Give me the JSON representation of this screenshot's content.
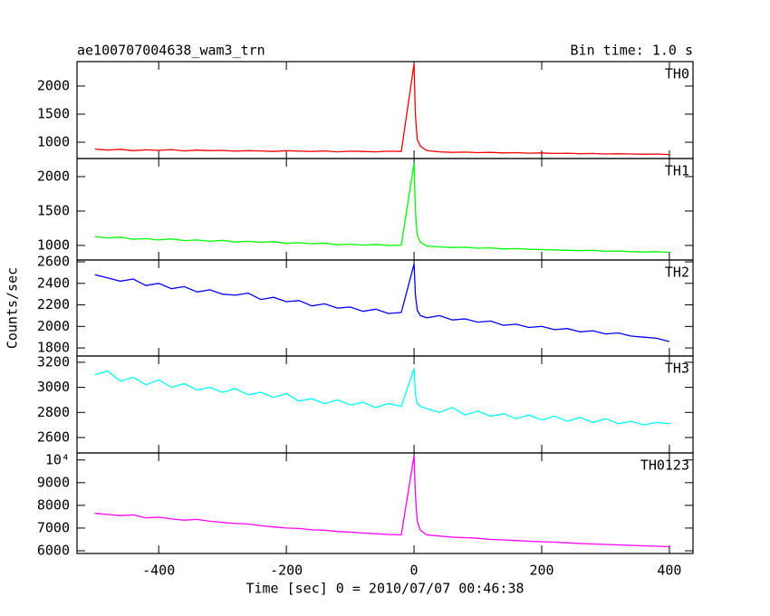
{
  "title": "ae100707004638_wam3_trn",
  "bin_time": "Bin time: 1.0 s",
  "x_label": "Time [sec] 0 = 2010/07/07 00:46:38",
  "y_label": "Counts/sec",
  "chart_data": [
    {
      "type": "line",
      "xlim": [
        -528,
        437
      ],
      "xticks": [
        -400,
        -200,
        0,
        200,
        400
      ],
      "ylim": [
        710,
        2435
      ],
      "yticks": [
        1000,
        1500,
        2000
      ],
      "x": [
        -500,
        -480,
        -460,
        -440,
        -420,
        -400,
        -380,
        -360,
        -340,
        -320,
        -300,
        -280,
        -260,
        -240,
        -220,
        -200,
        -180,
        -160,
        -140,
        -120,
        -100,
        -80,
        -60,
        -40,
        -20,
        0,
        2,
        5,
        10,
        20,
        40,
        60,
        80,
        100,
        120,
        140,
        160,
        180,
        200,
        220,
        240,
        260,
        280,
        300,
        320,
        340,
        360,
        380,
        400
      ],
      "series": [
        {
          "name": "TH0",
          "color": "#ff0000",
          "values": [
            880,
            860,
            875,
            850,
            865,
            855,
            870,
            845,
            860,
            850,
            855,
            840,
            850,
            845,
            835,
            850,
            840,
            835,
            845,
            830,
            840,
            835,
            830,
            840,
            835,
            2400,
            1500,
            1050,
            930,
            850,
            830,
            820,
            825,
            815,
            820,
            810,
            815,
            805,
            810,
            800,
            805,
            795,
            800,
            790,
            795,
            790,
            785,
            790,
            780
          ]
        }
      ]
    },
    {
      "type": "line",
      "xlim": [
        -528,
        437
      ],
      "xticks": [
        -400,
        -200,
        0,
        200,
        400
      ],
      "ylim": [
        789,
        2263
      ],
      "yticks": [
        1000,
        1500,
        2000
      ],
      "x": [
        -500,
        -480,
        -460,
        -440,
        -420,
        -400,
        -380,
        -360,
        -340,
        -320,
        -300,
        -280,
        -260,
        -240,
        -220,
        -200,
        -180,
        -160,
        -140,
        -120,
        -100,
        -80,
        -60,
        -40,
        -20,
        0,
        2,
        5,
        10,
        20,
        40,
        60,
        80,
        100,
        120,
        140,
        160,
        180,
        200,
        220,
        240,
        260,
        280,
        300,
        320,
        340,
        360,
        380,
        400
      ],
      "series": [
        {
          "name": "TH1",
          "color": "#00ff00",
          "values": [
            1130,
            1110,
            1120,
            1090,
            1100,
            1080,
            1095,
            1070,
            1080,
            1060,
            1075,
            1050,
            1060,
            1045,
            1055,
            1030,
            1040,
            1025,
            1035,
            1010,
            1020,
            1005,
            1015,
            1000,
            1005,
            2200,
            1500,
            1150,
            1050,
            990,
            980,
            970,
            975,
            960,
            965,
            950,
            955,
            945,
            940,
            935,
            930,
            925,
            930,
            915,
            920,
            910,
            905,
            910,
            900
          ]
        }
      ]
    },
    {
      "type": "line",
      "xlim": [
        -528,
        437
      ],
      "xticks": [
        -400,
        -200,
        0,
        200,
        400
      ],
      "ylim": [
        1725,
        2617
      ],
      "yticks": [
        1800,
        2000,
        2200,
        2400,
        2600
      ],
      "x": [
        -500,
        -480,
        -460,
        -440,
        -420,
        -400,
        -380,
        -360,
        -340,
        -320,
        -300,
        -280,
        -260,
        -240,
        -220,
        -200,
        -180,
        -160,
        -140,
        -120,
        -100,
        -80,
        -60,
        -40,
        -20,
        0,
        2,
        5,
        10,
        20,
        40,
        60,
        80,
        100,
        120,
        140,
        160,
        180,
        200,
        220,
        240,
        260,
        280,
        300,
        320,
        340,
        360,
        380,
        400
      ],
      "series": [
        {
          "name": "TH2",
          "color": "#0000ff",
          "values": [
            2480,
            2450,
            2420,
            2440,
            2380,
            2400,
            2350,
            2370,
            2320,
            2340,
            2300,
            2290,
            2310,
            2250,
            2270,
            2230,
            2240,
            2190,
            2210,
            2170,
            2180,
            2140,
            2160,
            2120,
            2130,
            2580,
            2300,
            2150,
            2100,
            2080,
            2100,
            2060,
            2070,
            2040,
            2050,
            2010,
            2020,
            1990,
            2000,
            1970,
            1980,
            1950,
            1960,
            1930,
            1940,
            1910,
            1900,
            1890,
            1860
          ]
        }
      ]
    },
    {
      "type": "line",
      "xlim": [
        -528,
        437
      ],
      "xticks": [
        -400,
        -200,
        0,
        200,
        400
      ],
      "ylim": [
        2477,
        3250
      ],
      "yticks": [
        2600,
        2800,
        3000,
        3200
      ],
      "x": [
        -500,
        -480,
        -460,
        -440,
        -420,
        -400,
        -380,
        -360,
        -340,
        -320,
        -300,
        -280,
        -260,
        -240,
        -220,
        -200,
        -180,
        -160,
        -140,
        -120,
        -100,
        -80,
        -60,
        -40,
        -20,
        0,
        2,
        5,
        10,
        20,
        40,
        60,
        80,
        100,
        120,
        140,
        160,
        180,
        200,
        220,
        240,
        260,
        280,
        300,
        320,
        340,
        360,
        380,
        400
      ],
      "series": [
        {
          "name": "TH3",
          "color": "#00ffff",
          "values": [
            3100,
            3130,
            3050,
            3080,
            3020,
            3060,
            3000,
            3030,
            2980,
            3000,
            2960,
            2990,
            2940,
            2960,
            2920,
            2950,
            2890,
            2910,
            2870,
            2900,
            2860,
            2880,
            2840,
            2870,
            2850,
            3150,
            2950,
            2870,
            2850,
            2830,
            2800,
            2840,
            2780,
            2810,
            2770,
            2790,
            2750,
            2780,
            2740,
            2770,
            2730,
            2760,
            2720,
            2750,
            2710,
            2730,
            2700,
            2720,
            2710
          ]
        }
      ]
    },
    {
      "type": "line",
      "xlim": [
        -528,
        437
      ],
      "xticks": [
        -400,
        -200,
        0,
        200,
        400
      ],
      "ylim": [
        5880,
        10310
      ],
      "yticks": [
        6000,
        7000,
        8000,
        9000,
        {
          "value": 10000,
          "label": "10⁴"
        }
      ],
      "x": [
        -500,
        -480,
        -460,
        -440,
        -420,
        -400,
        -380,
        -360,
        -340,
        -320,
        -300,
        -280,
        -260,
        -240,
        -220,
        -200,
        -180,
        -160,
        -140,
        -120,
        -100,
        -80,
        -60,
        -40,
        -20,
        0,
        2,
        5,
        10,
        20,
        40,
        60,
        80,
        100,
        120,
        140,
        160,
        180,
        200,
        220,
        240,
        260,
        280,
        300,
        320,
        340,
        360,
        380,
        400
      ],
      "series": [
        {
          "name": "TH0123",
          "color": "#ff00ff",
          "values": [
            7650,
            7600,
            7550,
            7580,
            7450,
            7480,
            7400,
            7350,
            7380,
            7300,
            7250,
            7200,
            7180,
            7100,
            7050,
            7000,
            6980,
            6920,
            6900,
            6850,
            6820,
            6780,
            6750,
            6720,
            6700,
            10200,
            8500,
            7300,
            6900,
            6700,
            6650,
            6600,
            6580,
            6550,
            6500,
            6480,
            6450,
            6420,
            6400,
            6380,
            6350,
            6320,
            6300,
            6280,
            6260,
            6240,
            6220,
            6200,
            6180
          ]
        }
      ]
    }
  ]
}
